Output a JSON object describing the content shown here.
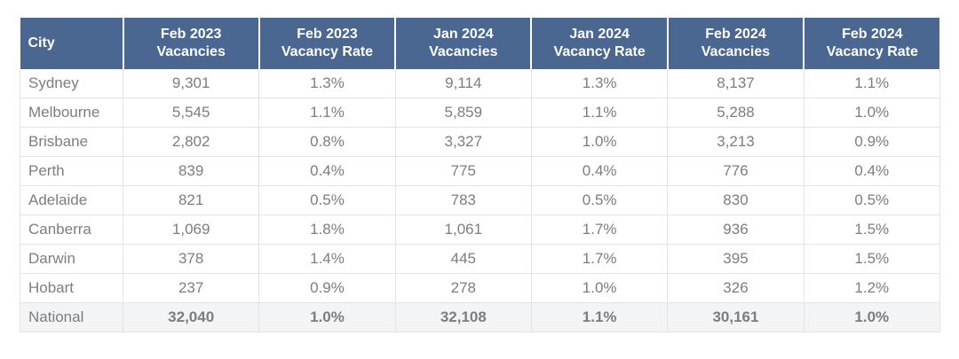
{
  "table": {
    "headers": [
      {
        "line1": "City",
        "line2": ""
      },
      {
        "line1": "Feb 2023",
        "line2": "Vacancies"
      },
      {
        "line1": "Feb 2023",
        "line2": "Vacancy Rate"
      },
      {
        "line1": "Jan 2024",
        "line2": "Vacancies"
      },
      {
        "line1": "Jan 2024",
        "line2": "Vacancy Rate"
      },
      {
        "line1": "Feb 2024",
        "line2": "Vacancies"
      },
      {
        "line1": "Feb 2024",
        "line2": "Vacancy Rate"
      }
    ],
    "rows": [
      [
        "Sydney",
        "9,301",
        "1.3%",
        "9,114",
        "1.3%",
        "8,137",
        "1.1%"
      ],
      [
        "Melbourne",
        "5,545",
        "1.1%",
        "5,859",
        "1.1%",
        "5,288",
        "1.0%"
      ],
      [
        "Brisbane",
        "2,802",
        "0.8%",
        "3,327",
        "1.0%",
        "3,213",
        "0.9%"
      ],
      [
        "Perth",
        "839",
        "0.4%",
        "775",
        "0.4%",
        "776",
        "0.4%"
      ],
      [
        "Adelaide",
        "821",
        "0.5%",
        "783",
        "0.5%",
        "830",
        "0.5%"
      ],
      [
        "Canberra",
        "1,069",
        "1.8%",
        "1,061",
        "1.7%",
        "936",
        "1.5%"
      ],
      [
        "Darwin",
        "378",
        "1.4%",
        "445",
        "1.7%",
        "395",
        "1.5%"
      ],
      [
        "Hobart",
        "237",
        "0.9%",
        "278",
        "1.0%",
        "326",
        "1.2%"
      ]
    ],
    "total": [
      "National",
      "32,040",
      "1.0%",
      "32,108",
      "1.1%",
      "30,161",
      "1.0%"
    ]
  },
  "colors": {
    "header_bg": "#4a6791",
    "header_text": "#ffffff",
    "body_text": "#7d7d7d",
    "total_bg": "#f3f4f6",
    "grid": "#e4e4e4"
  }
}
